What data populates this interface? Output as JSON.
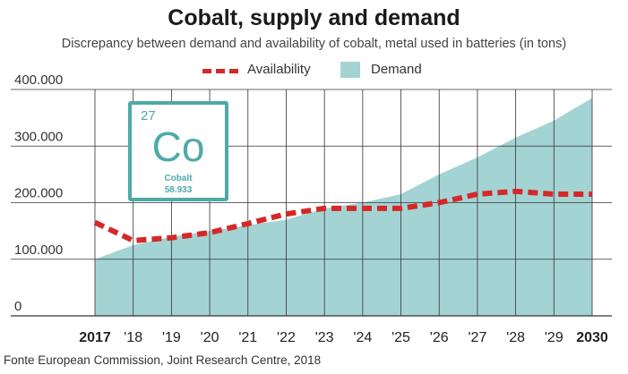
{
  "chart_data": {
    "type": "area",
    "title": "Cobalt, supply and demand",
    "subtitle": "Discrepancy between demand and availability of cobalt, metal used in batteries (in tons)",
    "categories": [
      "2017",
      "'18",
      "'19",
      "'20",
      "'21",
      "'22",
      "'23",
      "'24",
      "'25",
      "'26",
      "'27",
      "'28",
      "'29",
      "2030"
    ],
    "series": [
      {
        "name": "Demand",
        "style": "area",
        "values": [
          100000,
          125000,
          140000,
          150000,
          160000,
          170000,
          190000,
          200000,
          215000,
          250000,
          280000,
          315000,
          345000,
          385000
        ]
      },
      {
        "name": "Availability",
        "style": "dashed-line",
        "values": [
          165000,
          133000,
          138000,
          147000,
          163000,
          180000,
          190000,
          190000,
          190000,
          200000,
          215000,
          220000,
          215000,
          215000
        ]
      }
    ],
    "ylim": [
      0,
      400000
    ],
    "yticks": [
      "0",
      "100.000",
      "200.000",
      "300.000",
      "400.000"
    ],
    "bold_xticks": [
      "2017",
      "2030"
    ],
    "grid": true,
    "legend": "top-center",
    "colors": {
      "demand": "#a4d3d4",
      "availability": "#d62828",
      "grid": "#333333"
    }
  },
  "element_tile": {
    "number": "27",
    "symbol": "Co",
    "name": "Cobalt",
    "mass": "58.933",
    "color": "#4eaaa7"
  },
  "source": "Fonte European Commission, Joint Research Centre, 2018"
}
